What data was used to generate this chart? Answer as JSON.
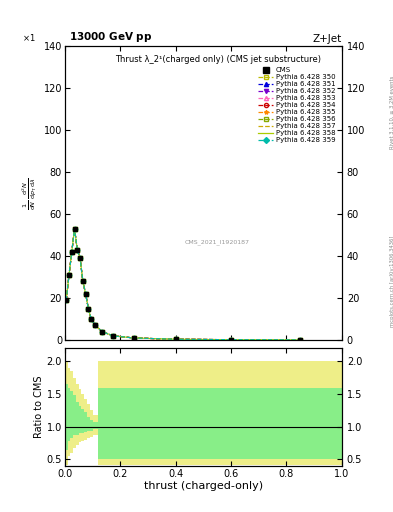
{
  "title_top": "13000 GeV pp",
  "title_right": "Z+Jet",
  "plot_title": "Thrust λ_2¹(charged only) (CMS jet substructure)",
  "xlabel": "thrust (charged-only)",
  "ylabel_ratio": "Ratio to CMS",
  "watermark": "CMS_2021_I1920187",
  "right_label": "mcplots.cern.ch [arXiv:1306.3436]",
  "rivet_label": "Rivet 3.1.10, ≥ 3.2M events",
  "ylim_main": [
    0,
    140
  ],
  "ylim_ratio": [
    0.4,
    2.2
  ],
  "yticks_main": [
    0,
    20,
    40,
    60,
    80,
    100,
    120,
    140
  ],
  "yticks_ratio": [
    0.5,
    1.0,
    1.5,
    2.0
  ],
  "xlim": [
    0,
    1
  ],
  "thrust_x": [
    0.005,
    0.015,
    0.025,
    0.035,
    0.045,
    0.055,
    0.065,
    0.075,
    0.085,
    0.095,
    0.11,
    0.135,
    0.175,
    0.25,
    0.4,
    0.6,
    0.85
  ],
  "thrust_y": [
    19.0,
    31.0,
    42.0,
    53.0,
    43.0,
    39.0,
    28.0,
    22.0,
    15.0,
    10.0,
    7.0,
    4.0,
    2.0,
    1.0,
    0.4,
    0.2,
    0.1
  ],
  "pythia_curves": [
    {
      "label": "Pythia 6.428 350",
      "color": "#bbbb00",
      "linestyle": "--",
      "marker": "s",
      "fillstyle": "none"
    },
    {
      "label": "Pythia 6.428 351",
      "color": "#0000dd",
      "linestyle": "--",
      "marker": "^",
      "fillstyle": "full"
    },
    {
      "label": "Pythia 6.428 352",
      "color": "#7700cc",
      "linestyle": "--",
      "marker": "v",
      "fillstyle": "full"
    },
    {
      "label": "Pythia 6.428 353",
      "color": "#ff66bb",
      "linestyle": "--",
      "marker": "^",
      "fillstyle": "none"
    },
    {
      "label": "Pythia 6.428 354",
      "color": "#cc0000",
      "linestyle": "--",
      "marker": "o",
      "fillstyle": "none"
    },
    {
      "label": "Pythia 6.428 355",
      "color": "#ff8800",
      "linestyle": "--",
      "marker": "*",
      "fillstyle": "full"
    },
    {
      "label": "Pythia 6.428 356",
      "color": "#88aa00",
      "linestyle": "--",
      "marker": "s",
      "fillstyle": "none"
    },
    {
      "label": "Pythia 6.428 357",
      "color": "#ccaa00",
      "linestyle": "--",
      "marker": "None",
      "fillstyle": "none"
    },
    {
      "label": "Pythia 6.428 358",
      "color": "#aacc00",
      "linestyle": "-",
      "marker": "None",
      "fillstyle": "none"
    },
    {
      "label": "Pythia 6.428 359",
      "color": "#00bbaa",
      "linestyle": "--",
      "marker": "D",
      "fillstyle": "full"
    }
  ],
  "ratio_yellow_color": "#eeee88",
  "ratio_green_color": "#88ee88",
  "ratio_x_bins": [
    0.0,
    0.01,
    0.02,
    0.03,
    0.04,
    0.05,
    0.06,
    0.07,
    0.08,
    0.09,
    0.1,
    0.12,
    1.0
  ],
  "ratio_yel_lo": [
    0.42,
    0.55,
    0.6,
    0.68,
    0.72,
    0.76,
    0.78,
    0.8,
    0.83,
    0.85,
    0.88,
    0.42
  ],
  "ratio_yel_hi": [
    2.0,
    1.9,
    1.85,
    1.75,
    1.65,
    1.58,
    1.5,
    1.43,
    1.35,
    1.25,
    1.18,
    2.0
  ],
  "ratio_grn_lo": [
    0.65,
    0.78,
    0.82,
    0.87,
    0.88,
    0.9,
    0.91,
    0.92,
    0.93,
    0.94,
    0.96,
    0.5
  ],
  "ratio_grn_hi": [
    1.65,
    1.6,
    1.55,
    1.48,
    1.38,
    1.32,
    1.27,
    1.22,
    1.15,
    1.1,
    1.07,
    1.6
  ],
  "background_color": "#ffffff"
}
